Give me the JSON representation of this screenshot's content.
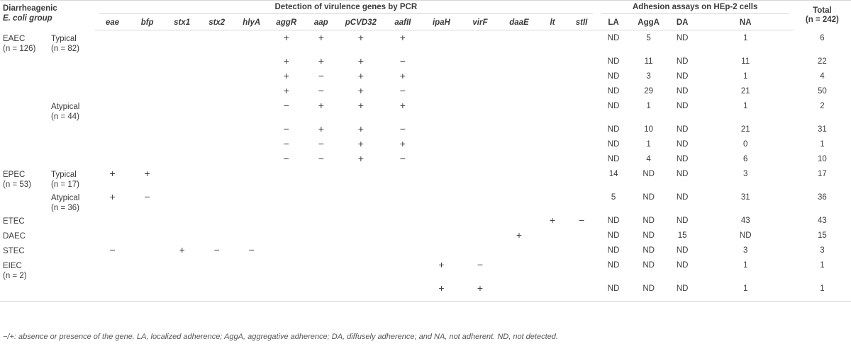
{
  "header": {
    "group_label_1": "Diarrheagenic",
    "group_label_2": "E. coli group",
    "pcr_title": "Detection of virulence genes by PCR",
    "adhesion_title": "Adhesion assays on HEp-2 cells",
    "total_label": "Total",
    "total_n": "(n = 242)",
    "genes": [
      "eae",
      "bfp",
      "stx1",
      "stx2",
      "hlyA",
      "aggR",
      "aap",
      "pCVD32",
      "aafII",
      "ipaH",
      "virF",
      "daaE",
      "lt",
      "stII"
    ],
    "adhesion": [
      "LA",
      "AggA",
      "DA",
      "NA"
    ]
  },
  "rows": [
    {
      "group": "EAEC",
      "group_n": "(n = 126)",
      "sub": "Typical",
      "sub_n": "(n = 82)",
      "genes": [
        "",
        "",
        "",
        "",
        "",
        "+",
        "+",
        "+",
        "+",
        "",
        "",
        "",
        "",
        ""
      ],
      "adh": [
        "ND",
        "5",
        "ND",
        "1"
      ],
      "total": "6"
    },
    {
      "group": "",
      "group_n": "",
      "sub": "",
      "sub_n": "",
      "genes": [
        "",
        "",
        "",
        "",
        "",
        "+",
        "+",
        "+",
        "−",
        "",
        "",
        "",
        "",
        ""
      ],
      "adh": [
        "ND",
        "11",
        "ND",
        "11"
      ],
      "total": "22"
    },
    {
      "group": "",
      "group_n": "",
      "sub": "",
      "sub_n": "",
      "genes": [
        "",
        "",
        "",
        "",
        "",
        "+",
        "−",
        "+",
        "+",
        "",
        "",
        "",
        "",
        ""
      ],
      "adh": [
        "ND",
        "3",
        "ND",
        "1"
      ],
      "total": "4"
    },
    {
      "group": "",
      "group_n": "",
      "sub": "",
      "sub_n": "",
      "genes": [
        "",
        "",
        "",
        "",
        "",
        "+",
        "−",
        "+",
        "−",
        "",
        "",
        "",
        "",
        ""
      ],
      "adh": [
        "ND",
        "29",
        "ND",
        "21"
      ],
      "total": "50"
    },
    {
      "group": "",
      "group_n": "",
      "sub": "Atypical",
      "sub_n": "(n = 44)",
      "genes": [
        "",
        "",
        "",
        "",
        "",
        "−",
        "+",
        "+",
        "+",
        "",
        "",
        "",
        "",
        ""
      ],
      "adh": [
        "ND",
        "1",
        "ND",
        "1"
      ],
      "total": "2"
    },
    {
      "group": "",
      "group_n": "",
      "sub": "",
      "sub_n": "",
      "genes": [
        "",
        "",
        "",
        "",
        "",
        "−",
        "+",
        "+",
        "−",
        "",
        "",
        "",
        "",
        ""
      ],
      "adh": [
        "ND",
        "10",
        "ND",
        "21"
      ],
      "total": "31"
    },
    {
      "group": "",
      "group_n": "",
      "sub": "",
      "sub_n": "",
      "genes": [
        "",
        "",
        "",
        "",
        "",
        "−",
        "−",
        "+",
        "+",
        "",
        "",
        "",
        "",
        ""
      ],
      "adh": [
        "ND",
        "1",
        "ND",
        "0"
      ],
      "total": "1"
    },
    {
      "group": "",
      "group_n": "",
      "sub": "",
      "sub_n": "",
      "genes": [
        "",
        "",
        "",
        "",
        "",
        "−",
        "−",
        "+",
        "−",
        "",
        "",
        "",
        "",
        ""
      ],
      "adh": [
        "ND",
        "4",
        "ND",
        "6"
      ],
      "total": "10"
    },
    {
      "group": "EPEC",
      "group_n": "(n = 53)",
      "sub": "Typical",
      "sub_n": "(n = 17)",
      "genes": [
        "+",
        "+",
        "",
        "",
        "",
        "",
        "",
        "",
        "",
        "",
        "",
        "",
        "",
        ""
      ],
      "adh": [
        "14",
        "ND",
        "ND",
        "3"
      ],
      "total": "17"
    },
    {
      "group": "",
      "group_n": "",
      "sub": "Atypical",
      "sub_n": "(n = 36)",
      "genes": [
        "+",
        "−",
        "",
        "",
        "",
        "",
        "",
        "",
        "",
        "",
        "",
        "",
        "",
        ""
      ],
      "adh": [
        "5",
        "ND",
        "ND",
        "31"
      ],
      "total": "36"
    },
    {
      "group": "ETEC",
      "group_n": "",
      "sub": "",
      "sub_n": "",
      "genes": [
        "",
        "",
        "",
        "",
        "",
        "",
        "",
        "",
        "",
        "",
        "",
        "",
        "+",
        "−"
      ],
      "adh": [
        "ND",
        "ND",
        "ND",
        "43"
      ],
      "total": "43"
    },
    {
      "group": "DAEC",
      "group_n": "",
      "sub": "",
      "sub_n": "",
      "genes": [
        "",
        "",
        "",
        "",
        "",
        "",
        "",
        "",
        "",
        "",
        "",
        "+",
        "",
        ""
      ],
      "adh": [
        "ND",
        "ND",
        "15",
        "ND"
      ],
      "total": "15"
    },
    {
      "group": "STEC",
      "group_n": "",
      "sub": "",
      "sub_n": "",
      "genes": [
        "−",
        "",
        "+",
        "−",
        "−",
        "",
        "",
        "",
        "",
        "",
        "",
        "",
        "",
        ""
      ],
      "adh": [
        "ND",
        "ND",
        "ND",
        "3"
      ],
      "total": "3"
    },
    {
      "group": "EIEC",
      "group_n": "(n = 2)",
      "sub": "",
      "sub_n": "",
      "genes": [
        "",
        "",
        "",
        "",
        "",
        "",
        "",
        "",
        "",
        "+",
        "−",
        "",
        "",
        ""
      ],
      "adh": [
        "ND",
        "ND",
        "ND",
        "1"
      ],
      "total": "1"
    },
    {
      "group": "",
      "group_n": "",
      "sub": "",
      "sub_n": "",
      "genes": [
        "",
        "",
        "",
        "",
        "",
        "",
        "",
        "",
        "",
        "+",
        "+",
        "",
        "",
        ""
      ],
      "adh": [
        "ND",
        "ND",
        "ND",
        "1"
      ],
      "total": "1"
    }
  ],
  "footnote": "−/+: absence or presence of the gene. LA, localized adherence; AggA, aggregative adherence; DA, diffusely adherence; and NA, not adherent. ND, not detected."
}
